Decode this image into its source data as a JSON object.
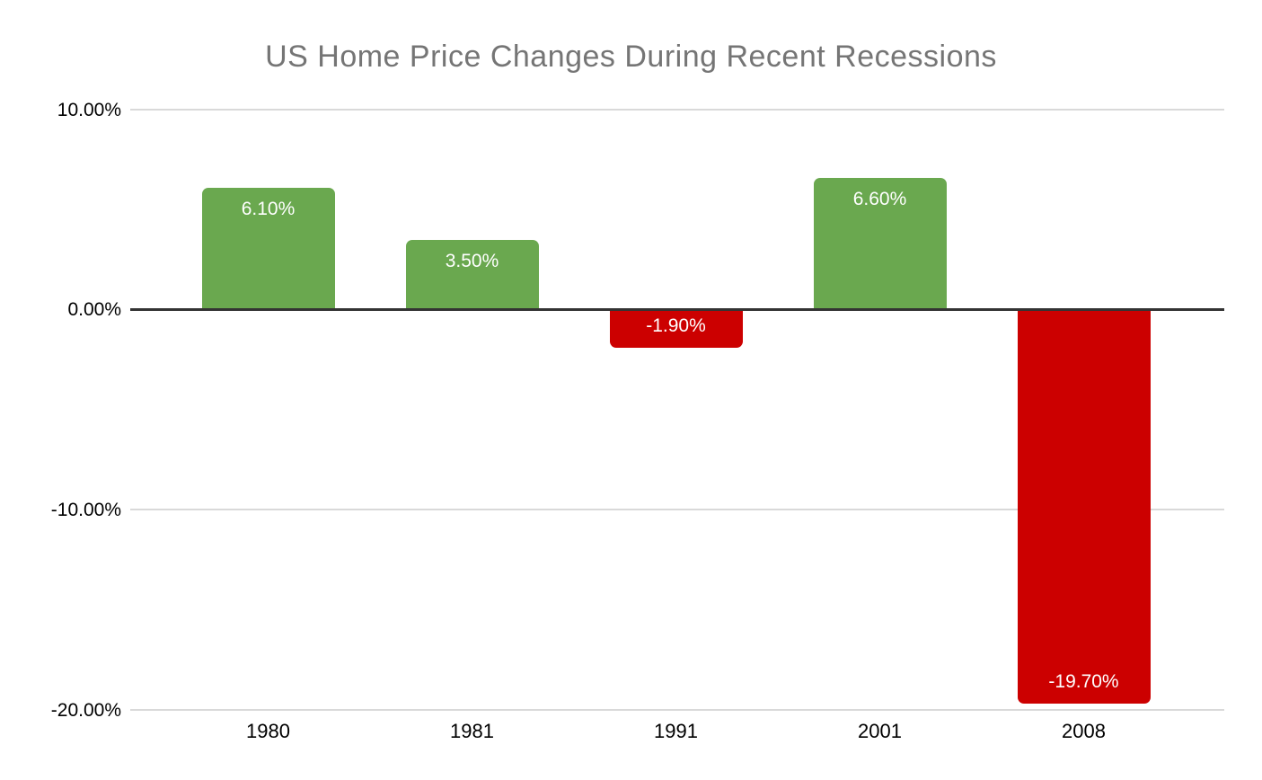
{
  "chart_data": {
    "type": "bar",
    "title": "US Home Price Changes During Recent Recessions",
    "categories": [
      "1980",
      "1981",
      "1991",
      "2001",
      "2008"
    ],
    "values": [
      6.1,
      3.5,
      -1.9,
      6.6,
      -19.7
    ],
    "value_labels": [
      "6.10%",
      "3.50%",
      "-1.90%",
      "6.60%",
      "-19.70%"
    ],
    "xlabel": "",
    "ylabel": "",
    "ylim": [
      -20,
      10
    ],
    "y_ticks": [
      10,
      0,
      -10,
      -20
    ],
    "y_tick_labels": [
      "10.00%",
      "0.00%",
      "-10.00%",
      "-20.00%"
    ],
    "grid": true,
    "legend": "none",
    "colors": {
      "positive_bar": "#6aa84f",
      "negative_bar": "#cc0000",
      "bar_label_text": "#ffffff",
      "title_text": "#757575",
      "axis_text": "#000000",
      "gridline": "#d9d9d9",
      "zero_line": "#333333",
      "background": "#ffffff"
    }
  }
}
